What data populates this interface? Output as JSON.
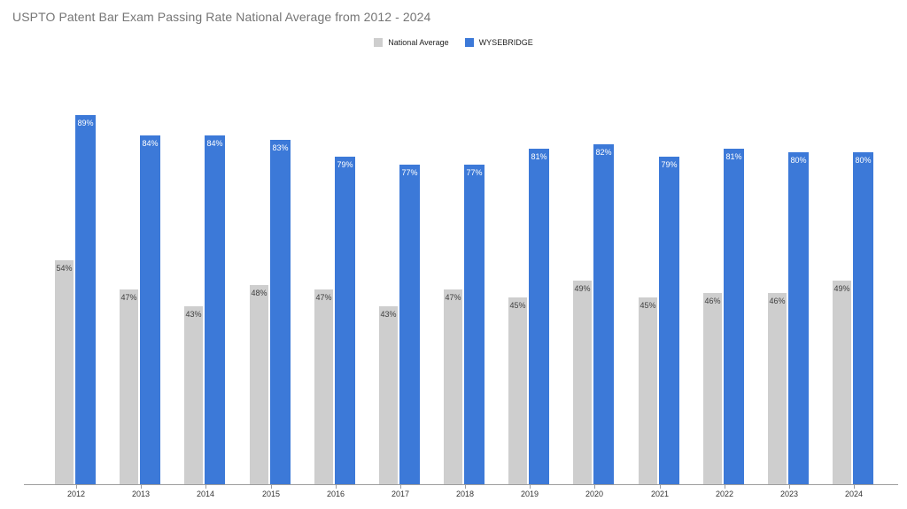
{
  "title": "USPTO Patent Bar Exam Passing Rate National Average from 2012 - 2024",
  "legend": {
    "items": [
      {
        "label": "National Average",
        "color": "#cecece"
      },
      {
        "label": "WYSEBRIDGE",
        "color": "#3c79d8"
      }
    ]
  },
  "colors": {
    "national_average_bar": "#cecece",
    "wysebridge_bar": "#3c79d8",
    "axis": "#9e9e9e",
    "title_text": "#757575",
    "gray_bar_label_text": "#404040",
    "blue_bar_label_text": "#ffffff",
    "x_axis_label_text": "#333333"
  },
  "chart_data": {
    "type": "bar",
    "title": "USPTO Patent Bar Exam Passing Rate National Average from 2012 - 2024",
    "categories": [
      "2012",
      "2013",
      "2014",
      "2015",
      "2016",
      "2017",
      "2018",
      "2019",
      "2020",
      "2021",
      "2022",
      "2023",
      "2024"
    ],
    "series": [
      {
        "name": "National Average",
        "color": "#cecece",
        "values": [
          54,
          47,
          43,
          48,
          47,
          43,
          47,
          45,
          49,
          45,
          46,
          46,
          49
        ]
      },
      {
        "name": "WYSEBRIDGE",
        "color": "#3c79d8",
        "values": [
          89,
          84,
          84,
          83,
          79,
          77,
          77,
          81,
          82,
          79,
          81,
          80,
          80
        ]
      }
    ],
    "value_label_suffix": "%",
    "xlabel": "",
    "ylabel": "",
    "ylim": [
      0,
      100
    ],
    "grid": false,
    "y_axis_visible": false,
    "legend_position": "top-center"
  }
}
